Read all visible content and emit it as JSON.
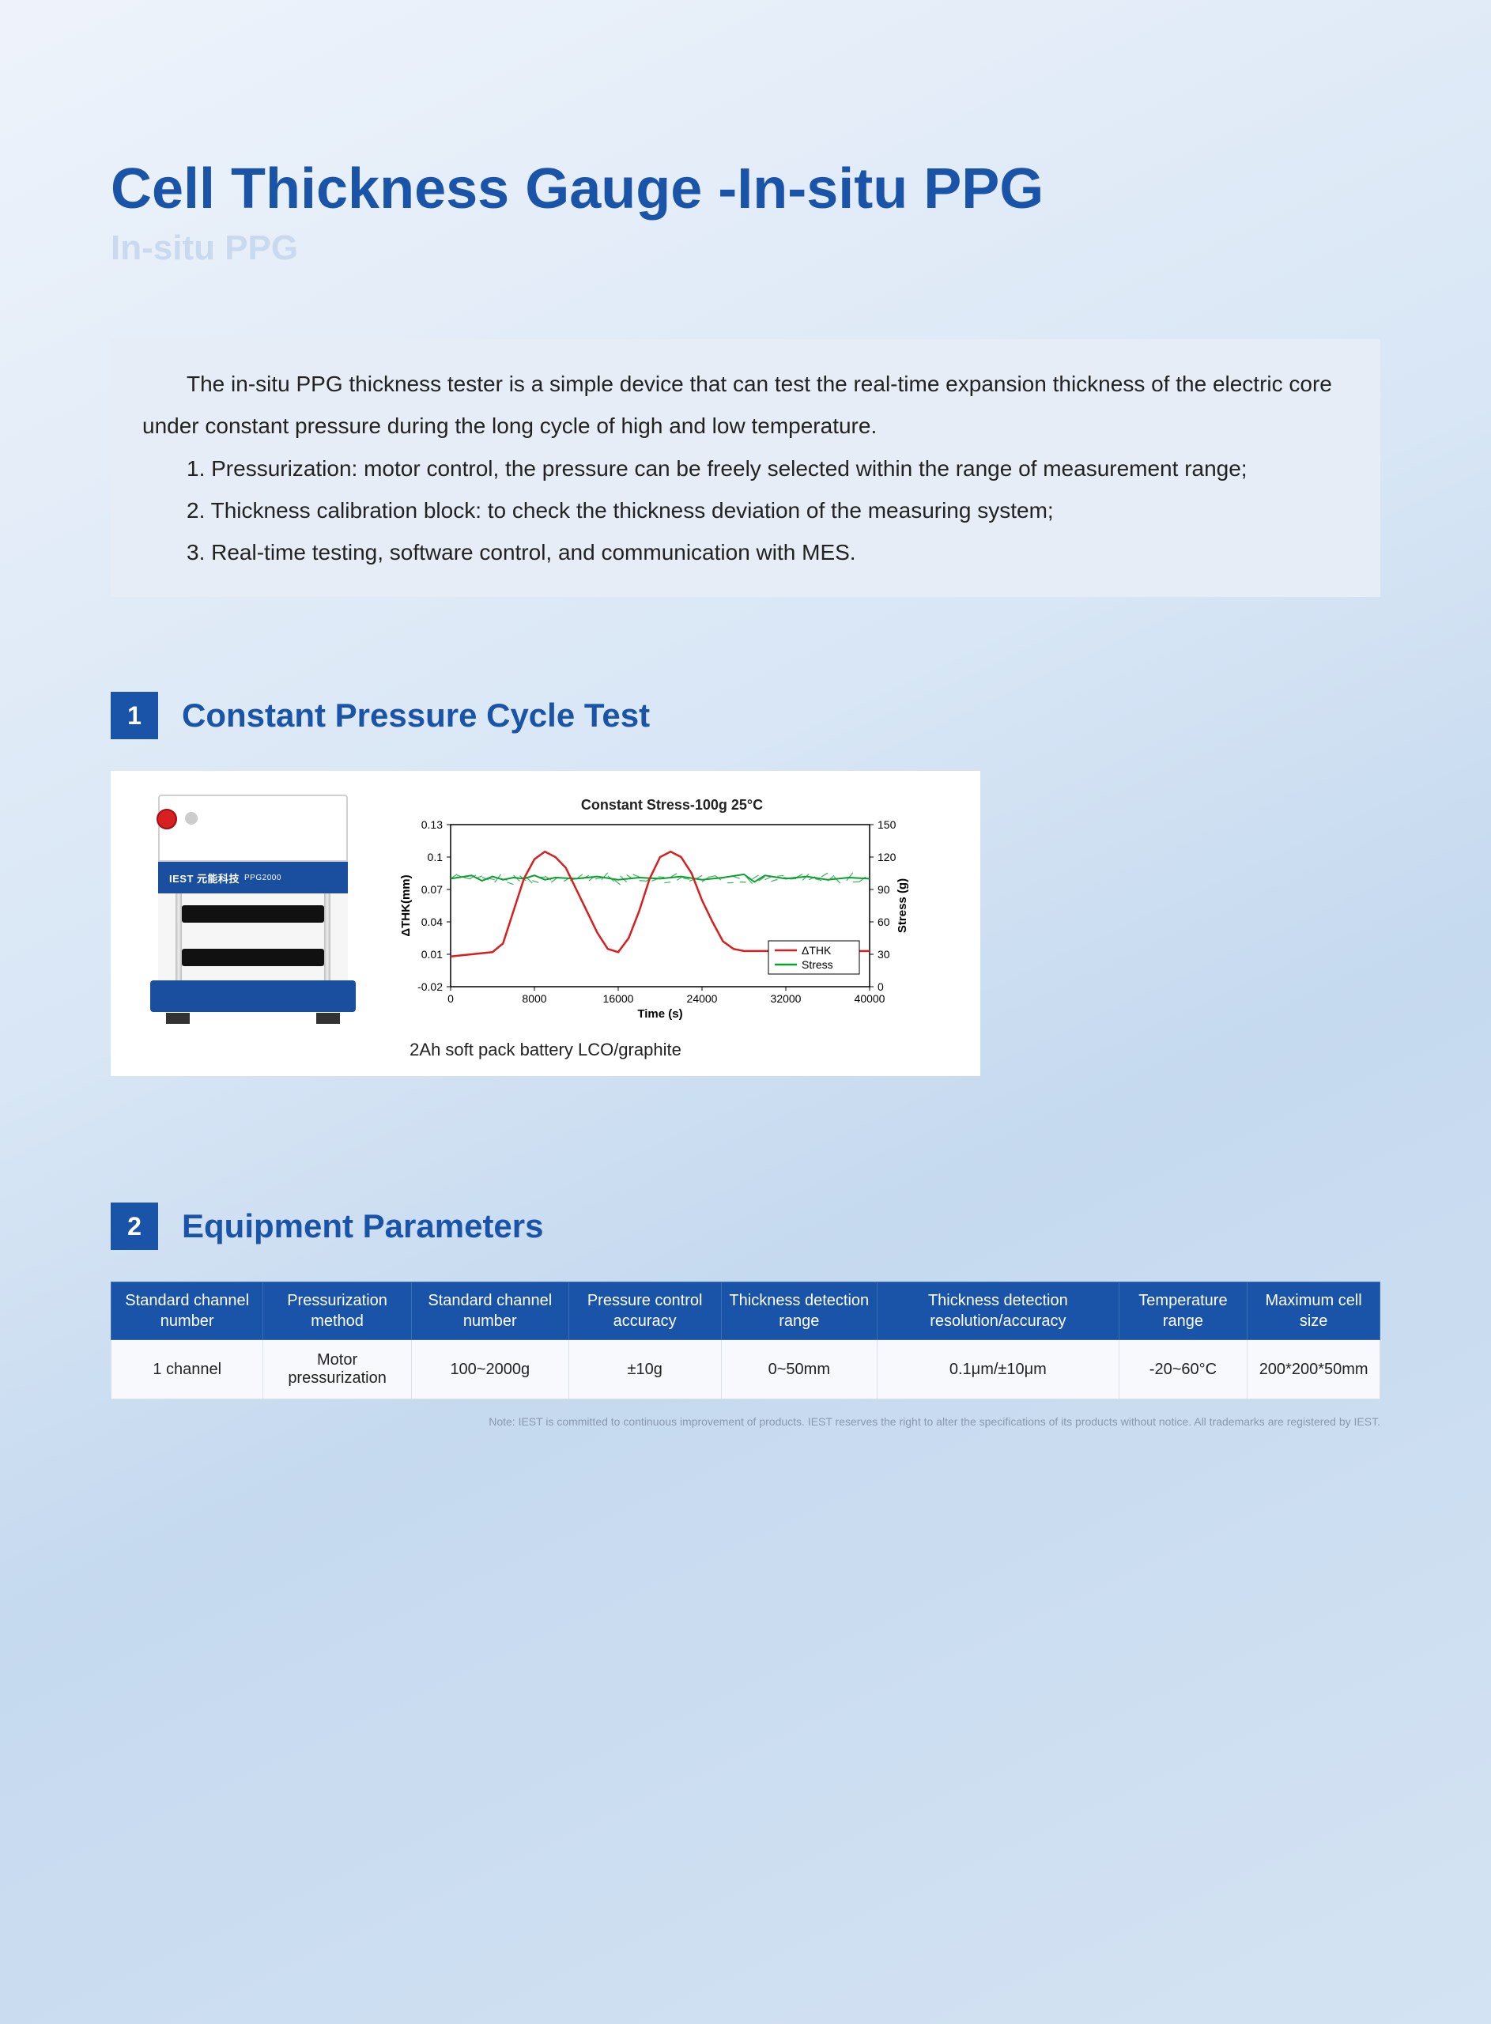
{
  "title": "Cell Thickness Gauge -In-situ PPG",
  "subtitle": "In-situ PPG",
  "intro": {
    "p1": "The in-situ PPG thickness tester is a simple device that can test the real-time expansion thickness of the electric core under constant pressure during the long cycle of high and low temperature.",
    "p2": "1. Pressurization: motor control, the pressure can be freely selected within the range of measurement range;",
    "p3": "2. Thickness calibration block: to check the thickness deviation of the measuring system;",
    "p4": "3. Real-time testing, software control, and communication with MES."
  },
  "section1": {
    "num": "1",
    "title": "Constant Pressure Cycle Test",
    "device_label": "IEST 元能科技",
    "device_model": "PPG2000",
    "chart": {
      "title": "Constant Stress-100g 25°C",
      "x_label": "Time (s)",
      "y1_label": "ΔTHK(mm)",
      "y2_label": "Stress (g)",
      "legend1": "ΔTHK",
      "legend2": "Stress",
      "x_ticks": [
        "0",
        "8000",
        "16000",
        "24000",
        "32000",
        "40000"
      ],
      "y1_ticks": [
        "-0.02",
        "0.01",
        "0.04",
        "0.07",
        "0.1",
        "0.13"
      ],
      "y2_ticks": [
        "0",
        "30",
        "60",
        "90",
        "120",
        "150"
      ],
      "thk_color": "#d81e1e",
      "stress_color": "#0aa030",
      "thk_points": [
        [
          0,
          0.008
        ],
        [
          2000,
          0.01
        ],
        [
          4000,
          0.012
        ],
        [
          5000,
          0.02
        ],
        [
          6000,
          0.05
        ],
        [
          7000,
          0.08
        ],
        [
          8000,
          0.098
        ],
        [
          9000,
          0.105
        ],
        [
          10000,
          0.1
        ],
        [
          11000,
          0.09
        ],
        [
          12000,
          0.07
        ],
        [
          13000,
          0.05
        ],
        [
          14000,
          0.03
        ],
        [
          15000,
          0.015
        ],
        [
          16000,
          0.012
        ],
        [
          17000,
          0.025
        ],
        [
          18000,
          0.05
        ],
        [
          19000,
          0.08
        ],
        [
          20000,
          0.1
        ],
        [
          21000,
          0.105
        ],
        [
          22000,
          0.1
        ],
        [
          23000,
          0.085
        ],
        [
          24000,
          0.06
        ],
        [
          25000,
          0.04
        ],
        [
          26000,
          0.022
        ],
        [
          27000,
          0.015
        ],
        [
          28000,
          0.013
        ],
        [
          30000,
          0.013
        ],
        [
          34000,
          0.013
        ],
        [
          40000,
          0.013
        ]
      ],
      "stress_points": [
        [
          0,
          100
        ],
        [
          2000,
          103
        ],
        [
          3000,
          98
        ],
        [
          4000,
          102
        ],
        [
          5000,
          99
        ],
        [
          6000,
          101
        ],
        [
          7000,
          100
        ],
        [
          8000,
          103
        ],
        [
          9000,
          99
        ],
        [
          10000,
          101
        ],
        [
          12000,
          100
        ],
        [
          14000,
          102
        ],
        [
          16000,
          99
        ],
        [
          18000,
          101
        ],
        [
          20000,
          100
        ],
        [
          22000,
          102
        ],
        [
          24000,
          99
        ],
        [
          26000,
          101
        ],
        [
          28000,
          104
        ],
        [
          29000,
          97
        ],
        [
          30000,
          103
        ],
        [
          32000,
          100
        ],
        [
          34000,
          102
        ],
        [
          36000,
          99
        ],
        [
          38000,
          101
        ],
        [
          40000,
          100
        ]
      ]
    },
    "caption": "2Ah soft pack battery LCO/graphite"
  },
  "section2": {
    "num": "2",
    "title": "Equipment Parameters",
    "headers": [
      "Standard channel number",
      "Pressurization method",
      "Standard channel number",
      "Pressure control accuracy",
      "Thickness detection range",
      "Thickness detection resolution/accuracy",
      "Temperature range",
      "Maximum cell size"
    ],
    "row": [
      "1 channel",
      "Motor pressurization",
      "100~2000g",
      "±10g",
      "0~50mm",
      "0.1μm/±10μm",
      "-20~60°C",
      "200*200*50mm"
    ]
  },
  "footnote": "Note: IEST is committed to continuous improvement of products. IEST reserves the right to alter the specifications of its products without notice. All trademarks are registered by IEST."
}
